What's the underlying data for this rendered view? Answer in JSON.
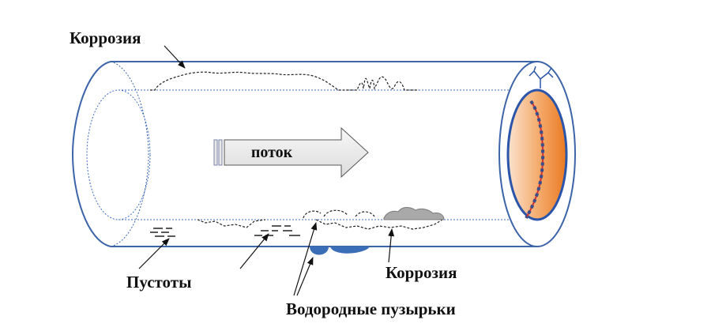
{
  "labels": {
    "corrosion_top": "Коррозия",
    "flow": "поток",
    "voids": "Пустоты",
    "corrosion_bottom": "Коррозия",
    "hydrogen_bubbles": "Водородные пузырьки"
  },
  "colors": {
    "pipe_outline": "#3c64a8",
    "inner_dotted": "#3c6cc0",
    "arrow_fill": "#ececec",
    "arrow_stroke": "#555555",
    "bubble": "#3a6fb8",
    "corrosion_grey": "#a9a9a9",
    "end_face_orange": "#ee8a3a",
    "crack_red": "#d03030",
    "label": "#111111"
  }
}
